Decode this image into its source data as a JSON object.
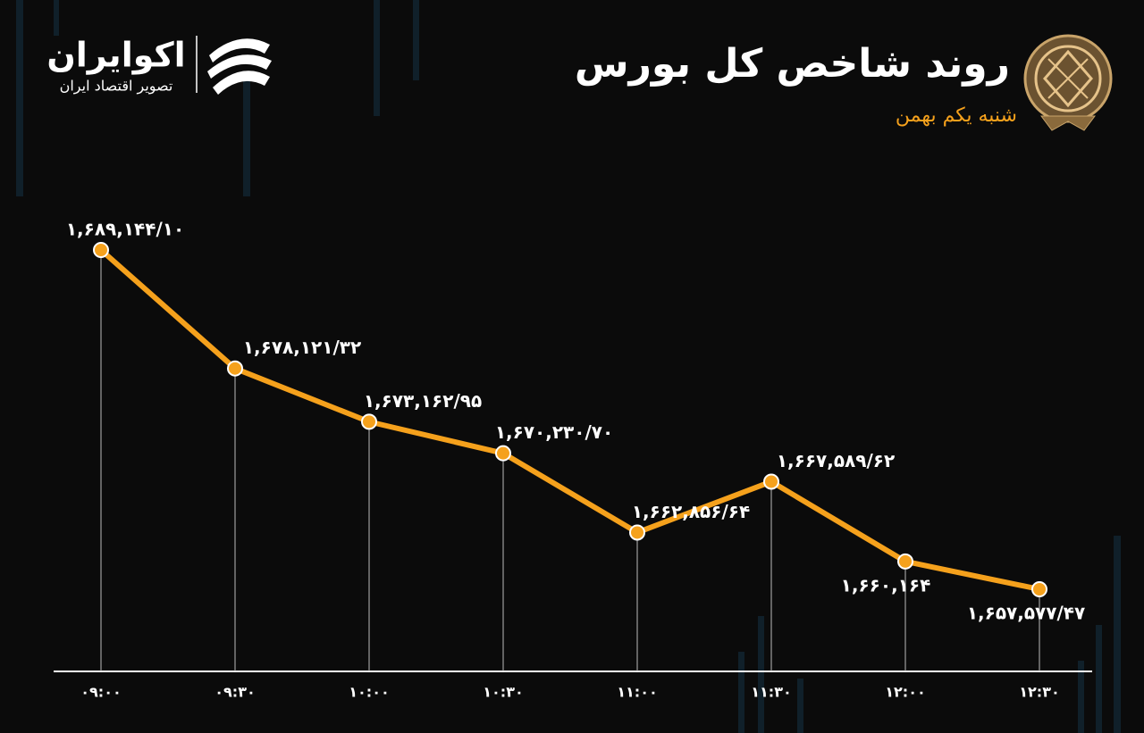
{
  "header": {
    "brand": "اکوایران",
    "slogan": "تصویر اقتصاد ایران"
  },
  "chart_data": {
    "type": "line",
    "title": "روند شاخص کل بورس",
    "subtitle": "شنبه یکم بهمن",
    "categories": [
      "۰۹:۰۰",
      "۰۹:۳۰",
      "۱۰:۰۰",
      "۱۰:۳۰",
      "۱۱:۰۰",
      "۱۱:۳۰",
      "۱۲:۰۰",
      "۱۲:۳۰"
    ],
    "values": [
      1689144.1,
      1678121.32,
      1673162.95,
      1670230.7,
      1662856.64,
      1667589.62,
      1660164,
      1657577.47
    ],
    "value_labels": [
      "۱,۶۸۹,۱۴۴/۱۰",
      "۱,۶۷۸,۱۲۱/۳۲",
      "۱,۶۷۳,۱۶۲/۹۵",
      "۱,۶۷۰,۲۳۰/۷۰",
      "۱,۶۶۲,۸۵۶/۶۴",
      "۱,۶۶۷,۵۸۹/۶۲",
      "۱,۶۶۰,۱۶۴",
      "۱,۶۵۷,۵۷۷/۴۷"
    ],
    "color": "#f5a11c"
  }
}
